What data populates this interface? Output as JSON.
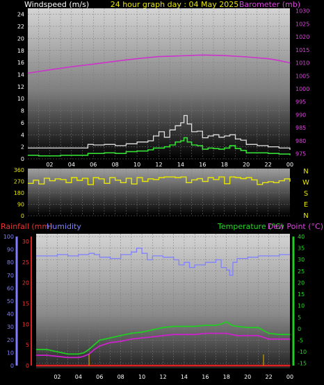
{
  "header": {
    "left": "Windspeed (m/s)",
    "center": "24 hour graph day : 04 May 2025",
    "right": "Barometer (mb)"
  },
  "bottom_header": {
    "rain": "Rainfall (mm)",
    "humidity": "Humidity",
    "temperature": "Temperature (°C)",
    "dewpoint": "Dew Point (°C)"
  },
  "colors": {
    "background": "#000000",
    "grid": "#7a7a7a",
    "wind_avg": "#33dd33",
    "wind_gust": "#e0e0e0",
    "barometer": "#cc33cc",
    "direction": "#e8e800",
    "humidity": "#8080ff",
    "temperature": "#22cc22",
    "dewpoint": "#cc22cc",
    "rain": "#dd2222",
    "rain_marks": "#c8a000",
    "label_white": "#ffffff",
    "label_yellow": "#e8e800",
    "label_magenta": "#dd44dd",
    "label_red": "#ee3333",
    "label_blue": "#8080ff",
    "label_green": "#22dd22"
  },
  "chart_data": [
    {
      "type": "line",
      "id": "wind",
      "x_ticks": [
        "02",
        "04",
        "06",
        "08",
        "10",
        "12",
        "14",
        "16",
        "18",
        "20",
        "22",
        "00"
      ],
      "x_range": [
        0,
        24
      ],
      "ylim": [
        0,
        25
      ],
      "y_ticks": [
        "0",
        "2",
        "4",
        "6",
        "8",
        "10",
        "12",
        "14",
        "16",
        "18",
        "20",
        "22",
        "24"
      ],
      "y_ticks_right": [
        "975",
        "980",
        "985",
        "990",
        "995",
        "1000",
        "1005",
        "1010",
        "1015",
        "1020",
        "1025",
        "1030"
      ],
      "y2lim": [
        973,
        1031
      ],
      "series": [
        {
          "role": "gust",
          "x": [
            0,
            1,
            2,
            3,
            4,
            5,
            5.5,
            6,
            7,
            8,
            9,
            10,
            11,
            11.5,
            12,
            12.5,
            13,
            13.5,
            14,
            14.3,
            14.6,
            15,
            15.5,
            16,
            16.5,
            17,
            17.5,
            18,
            18.5,
            19,
            19.5,
            20,
            21,
            22,
            23,
            24
          ],
          "values": [
            1.8,
            1.8,
            1.8,
            1.8,
            1.8,
            1.8,
            2.4,
            2.3,
            2.4,
            2.2,
            2.5,
            2.8,
            3.0,
            3.8,
            4.5,
            3.6,
            4.8,
            5.5,
            6.0,
            7.2,
            5.8,
            4.5,
            4.6,
            3.5,
            3.8,
            4.0,
            3.6,
            3.8,
            4.0,
            3.3,
            3.1,
            2.4,
            2.2,
            2.0,
            1.8,
            1.5
          ]
        },
        {
          "role": "average",
          "x": [
            0,
            1,
            2,
            3,
            4,
            5,
            5.5,
            6,
            7,
            8,
            9,
            10,
            11,
            11.5,
            12,
            12.5,
            13,
            13.5,
            14,
            14.3,
            14.6,
            15,
            15.5,
            16,
            16.5,
            17,
            17.5,
            18,
            18.5,
            19,
            19.5,
            20,
            21,
            22,
            23,
            24
          ],
          "values": [
            0.6,
            0.5,
            0.5,
            0.6,
            0.6,
            0.6,
            0.9,
            0.9,
            1.0,
            0.9,
            1.2,
            1.3,
            1.5,
            1.8,
            1.8,
            2.0,
            2.3,
            2.8,
            3.0,
            3.5,
            2.8,
            2.3,
            2.2,
            1.6,
            1.8,
            1.7,
            1.6,
            1.8,
            2.2,
            1.7,
            1.4,
            1.0,
            1.0,
            0.9,
            0.8,
            0.6
          ]
        },
        {
          "role": "barometer",
          "axis": "right",
          "x": [
            0,
            2,
            4,
            6,
            8,
            10,
            12,
            14,
            16,
            18,
            20,
            22,
            23,
            24
          ],
          "values": [
            1006,
            1007.3,
            1008.5,
            1009.5,
            1010.6,
            1011.6,
            1012.4,
            1012.7,
            1013,
            1012.8,
            1012.3,
            1011.6,
            1010.9,
            1010
          ]
        }
      ]
    },
    {
      "type": "line",
      "id": "direction",
      "x_range": [
        0,
        24
      ],
      "ylim": [
        0,
        360
      ],
      "y_ticks": [
        "0",
        "90",
        "180",
        "270",
        "360"
      ],
      "compass": [
        "N",
        "W",
        "S",
        "E",
        "N"
      ],
      "series": [
        {
          "x": [
            0,
            0.5,
            1,
            1.5,
            2,
            2.5,
            3,
            3.5,
            4,
            4.5,
            5,
            5.5,
            6,
            6.5,
            7,
            7.5,
            8,
            8.5,
            9,
            9.5,
            10,
            10.5,
            11,
            11.5,
            12,
            12.5,
            13,
            13.5,
            14,
            14.5,
            15,
            15.5,
            16,
            16.5,
            17,
            17.5,
            18,
            18.5,
            19,
            19.5,
            20,
            20.5,
            21,
            21.5,
            22,
            22.5,
            23,
            23.5,
            24
          ],
          "values": [
            255,
            280,
            250,
            295,
            275,
            290,
            285,
            260,
            300,
            278,
            295,
            245,
            300,
            290,
            255,
            300,
            280,
            260,
            295,
            250,
            300,
            270,
            290,
            285,
            300,
            305,
            305,
            300,
            305,
            260,
            282,
            292,
            270,
            300,
            285,
            305,
            252,
            305,
            300,
            292,
            300,
            282,
            246,
            260,
            268,
            260,
            275,
            290,
            268
          ]
        }
      ]
    },
    {
      "type": "line",
      "id": "temperature",
      "x_ticks": [
        "02",
        "04",
        "06",
        "08",
        "10",
        "12",
        "14",
        "16",
        "18",
        "20",
        "22",
        "00"
      ],
      "x_range": [
        0,
        24
      ],
      "left_rain_ticks": [
        "0",
        "5",
        "10",
        "15",
        "20",
        "25",
        "30"
      ],
      "left_rain_lim": [
        0,
        31
      ],
      "left_humidity_ticks": [
        "0",
        "10",
        "20",
        "30",
        "40",
        "50",
        "60",
        "70",
        "80",
        "90",
        "100"
      ],
      "ylim": [
        -16,
        40
      ],
      "y_ticks": [
        "-15",
        "-10",
        "-5",
        "0",
        "5",
        "10",
        "15",
        "20",
        "25",
        "30",
        "35",
        "40"
      ],
      "series": [
        {
          "role": "humidity",
          "axis": "left_humidity",
          "x": [
            0,
            1,
            2,
            3,
            4,
            5,
            5.5,
            6,
            7,
            8,
            9,
            9.5,
            10,
            10.5,
            11,
            12,
            13,
            13.5,
            14,
            14.5,
            15,
            16,
            17,
            17.5,
            18,
            18.3,
            18.6,
            19,
            20,
            21,
            22,
            23,
            24
          ],
          "values": [
            85,
            85,
            86,
            85,
            86,
            87,
            86,
            84,
            83,
            86,
            88,
            91,
            87,
            82,
            85,
            84,
            82,
            78,
            80,
            76,
            78,
            80,
            82,
            76,
            74,
            70,
            80,
            83,
            84,
            85,
            85,
            86,
            86
          ]
        },
        {
          "role": "temperature",
          "axis": "right",
          "x": [
            0,
            1,
            2,
            3,
            4,
            4.5,
            5,
            5.5,
            6,
            7,
            8,
            9,
            10,
            11,
            12,
            13,
            14,
            15,
            16,
            17,
            17.5,
            18,
            18.5,
            19,
            20,
            21,
            22,
            23,
            24
          ],
          "values": [
            -9,
            -9,
            -10,
            -11,
            -11,
            -10.5,
            -9,
            -7,
            -5,
            -4,
            -3,
            -2,
            -1.5,
            -0.5,
            0.5,
            1,
            1,
            1,
            1.5,
            1.5,
            2,
            3,
            1.5,
            1,
            0.5,
            0.5,
            -2,
            -2.5,
            -2.5
          ]
        },
        {
          "role": "dewpoint",
          "axis": "right",
          "x": [
            0,
            1,
            2,
            3,
            4,
            4.5,
            5,
            5.5,
            6,
            7,
            8,
            9,
            10,
            11,
            12,
            13,
            14,
            15,
            16,
            17,
            17.5,
            18,
            18.5,
            19,
            20,
            21,
            22,
            23,
            24
          ],
          "values": [
            -11.5,
            -11.5,
            -12,
            -12.5,
            -12.5,
            -12,
            -11,
            -9,
            -7.5,
            -6,
            -5.5,
            -4.5,
            -4,
            -3.5,
            -3,
            -2.5,
            -2.5,
            -2.5,
            -2,
            -2,
            -2,
            -2,
            -2.5,
            -3,
            -3,
            -3,
            -4.5,
            -4.5,
            -4.5
          ]
        },
        {
          "role": "rainfall",
          "axis": "left_rain",
          "x": [
            0,
            24
          ],
          "values": [
            0,
            0
          ]
        }
      ]
    }
  ]
}
